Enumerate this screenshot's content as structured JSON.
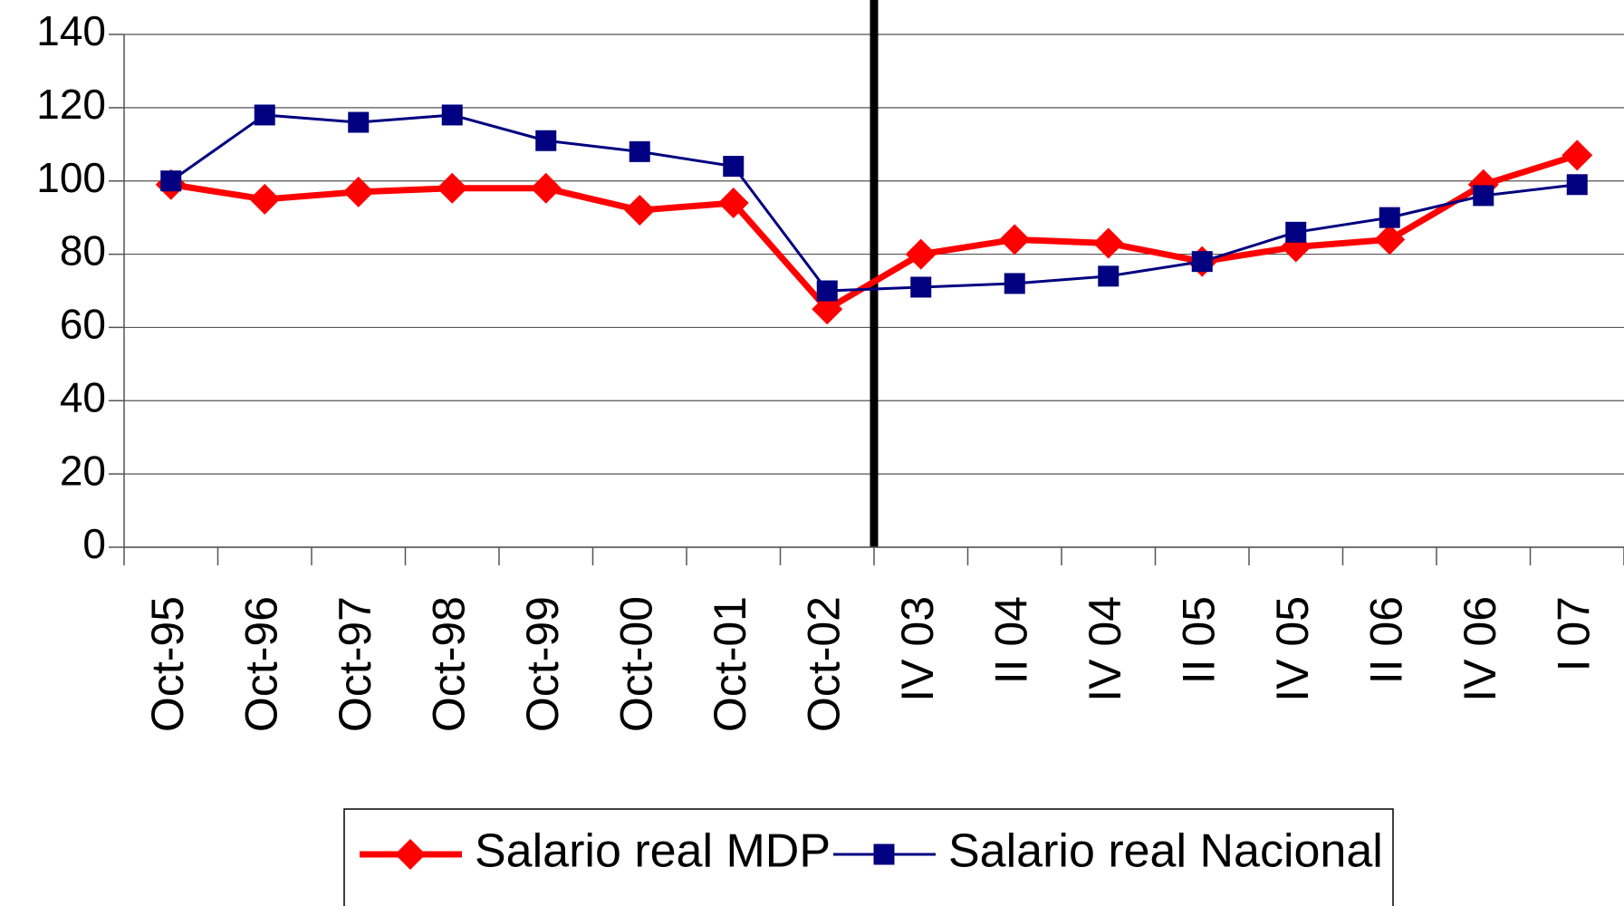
{
  "chart_data": {
    "type": "line",
    "categories": [
      "Oct-95",
      "Oct-96",
      "Oct-97",
      "Oct-98",
      "Oct-99",
      "Oct-00",
      "Oct-01",
      "Oct-02",
      "IV 03",
      "II 04",
      "IV 04",
      "II 05",
      "IV 05",
      "II 06",
      "IV 06",
      "I 07"
    ],
    "series": [
      {
        "name": "Salario real MDP",
        "color": "#ff0000",
        "values": [
          99,
          95,
          97,
          98,
          98,
          92,
          94,
          65,
          80,
          84,
          83,
          78,
          82,
          84,
          99,
          107
        ]
      },
      {
        "name": "Salario real Nacional",
        "color": "#000080",
        "values": [
          100,
          118,
          116,
          118,
          111,
          108,
          104,
          70,
          71,
          72,
          74,
          78,
          86,
          90,
          96,
          99
        ]
      }
    ],
    "ylim": [
      0,
      140
    ],
    "yticks": [
      0,
      20,
      40,
      60,
      80,
      100,
      120,
      140
    ],
    "grid": true,
    "legend": "bottom"
  }
}
